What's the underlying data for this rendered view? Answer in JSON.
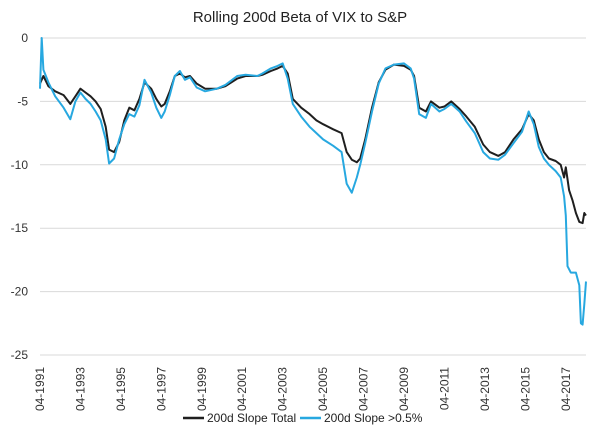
{
  "chart_data": {
    "type": "line",
    "title": "Rolling 200d Beta of VIX to S&P",
    "xlabel": "",
    "ylabel": "",
    "ylim": [
      -25,
      0
    ],
    "y_ticks": [
      0,
      -5,
      -10,
      -15,
      -20,
      -25
    ],
    "x_range": [
      "1991-04",
      "2018-04"
    ],
    "x_ticks": [
      "04-1991",
      "04-1993",
      "04-1995",
      "04-1997",
      "04-1999",
      "04-2001",
      "04-2003",
      "04-2005",
      "04-2007",
      "04-2009",
      "04-2011",
      "04-2013",
      "04-2015",
      "04-2017"
    ],
    "grid": "horizontal",
    "legend_position": "bottom",
    "series": [
      {
        "name": "200d Slope Total",
        "color": "#1f1f1f",
        "points": [
          [
            "1991-04",
            -3.6
          ],
          [
            "1991-06",
            -3.0
          ],
          [
            "1991-09",
            -3.8
          ],
          [
            "1992-01",
            -4.2
          ],
          [
            "1992-06",
            -4.5
          ],
          [
            "1992-10",
            -5.2
          ],
          [
            "1993-01",
            -4.6
          ],
          [
            "1993-04",
            -4.0
          ],
          [
            "1993-07",
            -4.3
          ],
          [
            "1993-10",
            -4.6
          ],
          [
            "1994-01",
            -5.0
          ],
          [
            "1994-04",
            -5.6
          ],
          [
            "1994-07",
            -7.0
          ],
          [
            "1994-09",
            -8.8
          ],
          [
            "1994-12",
            -9.0
          ],
          [
            "1995-03",
            -8.2
          ],
          [
            "1995-06",
            -6.5
          ],
          [
            "1995-09",
            -5.5
          ],
          [
            "1995-12",
            -5.7
          ],
          [
            "1996-03",
            -4.8
          ],
          [
            "1996-06",
            -3.5
          ],
          [
            "1996-10",
            -4.0
          ],
          [
            "1997-01",
            -4.8
          ],
          [
            "1997-04",
            -5.4
          ],
          [
            "1997-06",
            -5.2
          ],
          [
            "1997-09",
            -4.2
          ],
          [
            "1997-12",
            -3.0
          ],
          [
            "1998-03",
            -2.8
          ],
          [
            "1998-06",
            -3.1
          ],
          [
            "1998-09",
            -3.0
          ],
          [
            "1999-01",
            -3.6
          ],
          [
            "1999-06",
            -4.0
          ],
          [
            "2000-01",
            -4.0
          ],
          [
            "2000-06",
            -3.8
          ],
          [
            "2001-01",
            -3.2
          ],
          [
            "2001-06",
            -3.0
          ],
          [
            "2002-01",
            -3.0
          ],
          [
            "2002-04",
            -2.9
          ],
          [
            "2002-09",
            -2.6
          ],
          [
            "2003-01",
            -2.4
          ],
          [
            "2003-04",
            -2.2
          ],
          [
            "2003-07",
            -2.8
          ],
          [
            "2003-10",
            -4.8
          ],
          [
            "2004-03",
            -5.5
          ],
          [
            "2004-08",
            -6.0
          ],
          [
            "2004-12",
            -6.5
          ],
          [
            "2005-04",
            -6.8
          ],
          [
            "2005-10",
            -7.2
          ],
          [
            "2006-03",
            -7.5
          ],
          [
            "2006-06",
            -9.0
          ],
          [
            "2006-09",
            -9.6
          ],
          [
            "2006-12",
            -9.8
          ],
          [
            "2007-02",
            -9.5
          ],
          [
            "2007-05",
            -8.0
          ],
          [
            "2007-09",
            -5.5
          ],
          [
            "2008-01",
            -3.5
          ],
          [
            "2008-05",
            -2.5
          ],
          [
            "2008-10",
            -2.1
          ],
          [
            "2009-04",
            -2.2
          ],
          [
            "2009-08",
            -2.5
          ],
          [
            "2009-10",
            -3.0
          ],
          [
            "2010-01",
            -5.5
          ],
          [
            "2010-05",
            -5.8
          ],
          [
            "2010-08",
            -5.0
          ],
          [
            "2011-01",
            -5.5
          ],
          [
            "2011-04",
            -5.4
          ],
          [
            "2011-08",
            -5.0
          ],
          [
            "2012-01",
            -5.6
          ],
          [
            "2012-05",
            -6.2
          ],
          [
            "2012-10",
            -7.0
          ],
          [
            "2013-03",
            -8.4
          ],
          [
            "2013-07",
            -9.0
          ],
          [
            "2013-12",
            -9.3
          ],
          [
            "2014-04",
            -9.0
          ],
          [
            "2014-09",
            -8.0
          ],
          [
            "2015-02",
            -7.2
          ],
          [
            "2015-06",
            -6.0
          ],
          [
            "2015-09",
            -6.5
          ],
          [
            "2015-12",
            -8.0
          ],
          [
            "2016-03",
            -9.0
          ],
          [
            "2016-06",
            -9.5
          ],
          [
            "2016-10",
            -9.7
          ],
          [
            "2017-01",
            -10.0
          ],
          [
            "2017-03",
            -11.0
          ],
          [
            "2017-04",
            -10.2
          ],
          [
            "2017-06",
            -12.0
          ],
          [
            "2017-08",
            -12.8
          ],
          [
            "2017-10",
            -13.8
          ],
          [
            "2017-12",
            -14.5
          ],
          [
            "2018-02",
            -14.6
          ],
          [
            "2018-03",
            -13.8
          ],
          [
            "2018-04",
            -14.0
          ]
        ]
      },
      {
        "name": "200d Slope >0.5%",
        "color": "#27a8e0",
        "points": [
          [
            "1991-04",
            -4.0
          ],
          [
            "1991-05",
            0.0
          ],
          [
            "1991-06",
            -2.5
          ],
          [
            "1991-09",
            -3.5
          ],
          [
            "1992-01",
            -4.6
          ],
          [
            "1992-06",
            -5.5
          ],
          [
            "1992-10",
            -6.4
          ],
          [
            "1993-01",
            -5.0
          ],
          [
            "1993-04",
            -4.3
          ],
          [
            "1993-07",
            -4.8
          ],
          [
            "1993-10",
            -5.2
          ],
          [
            "1994-01",
            -5.8
          ],
          [
            "1994-04",
            -6.5
          ],
          [
            "1994-07",
            -8.0
          ],
          [
            "1994-09",
            -9.9
          ],
          [
            "1994-12",
            -9.5
          ],
          [
            "1995-03",
            -8.0
          ],
          [
            "1995-06",
            -6.8
          ],
          [
            "1995-09",
            -6.0
          ],
          [
            "1995-12",
            -6.2
          ],
          [
            "1996-03",
            -5.3
          ],
          [
            "1996-06",
            -3.3
          ],
          [
            "1996-10",
            -4.3
          ],
          [
            "1997-01",
            -5.5
          ],
          [
            "1997-04",
            -6.3
          ],
          [
            "1997-06",
            -5.8
          ],
          [
            "1997-09",
            -4.5
          ],
          [
            "1997-12",
            -3.0
          ],
          [
            "1998-03",
            -2.6
          ],
          [
            "1998-06",
            -3.3
          ],
          [
            "1998-09",
            -3.1
          ],
          [
            "1999-01",
            -3.9
          ],
          [
            "1999-06",
            -4.2
          ],
          [
            "2000-01",
            -4.0
          ],
          [
            "2000-06",
            -3.7
          ],
          [
            "2001-01",
            -3.0
          ],
          [
            "2001-06",
            -2.9
          ],
          [
            "2002-01",
            -3.0
          ],
          [
            "2002-04",
            -2.8
          ],
          [
            "2002-09",
            -2.4
          ],
          [
            "2003-01",
            -2.2
          ],
          [
            "2003-04",
            -2.0
          ],
          [
            "2003-07",
            -3.2
          ],
          [
            "2003-10",
            -5.2
          ],
          [
            "2004-03",
            -6.2
          ],
          [
            "2004-08",
            -7.0
          ],
          [
            "2004-12",
            -7.5
          ],
          [
            "2005-04",
            -8.0
          ],
          [
            "2005-10",
            -8.5
          ],
          [
            "2006-03",
            -9.0
          ],
          [
            "2006-06",
            -11.5
          ],
          [
            "2006-09",
            -12.2
          ],
          [
            "2006-12",
            -11.0
          ],
          [
            "2007-02",
            -10.0
          ],
          [
            "2007-05",
            -8.3
          ],
          [
            "2007-09",
            -5.8
          ],
          [
            "2008-01",
            -3.6
          ],
          [
            "2008-05",
            -2.4
          ],
          [
            "2008-10",
            -2.1
          ],
          [
            "2009-04",
            -2.0
          ],
          [
            "2009-08",
            -2.4
          ],
          [
            "2009-10",
            -3.2
          ],
          [
            "2010-01",
            -6.0
          ],
          [
            "2010-05",
            -6.3
          ],
          [
            "2010-08",
            -5.2
          ],
          [
            "2011-01",
            -5.8
          ],
          [
            "2011-04",
            -5.6
          ],
          [
            "2011-08",
            -5.2
          ],
          [
            "2012-01",
            -5.8
          ],
          [
            "2012-05",
            -6.6
          ],
          [
            "2012-10",
            -7.5
          ],
          [
            "2013-03",
            -9.0
          ],
          [
            "2013-07",
            -9.5
          ],
          [
            "2013-12",
            -9.6
          ],
          [
            "2014-04",
            -9.2
          ],
          [
            "2014-09",
            -8.3
          ],
          [
            "2015-02",
            -7.4
          ],
          [
            "2015-06",
            -5.8
          ],
          [
            "2015-09",
            -6.8
          ],
          [
            "2015-12",
            -8.6
          ],
          [
            "2016-03",
            -9.5
          ],
          [
            "2016-06",
            -10.0
          ],
          [
            "2016-10",
            -10.5
          ],
          [
            "2017-01",
            -11.0
          ],
          [
            "2017-03",
            -12.5
          ],
          [
            "2017-04",
            -14.0
          ],
          [
            "2017-05",
            -18.0
          ],
          [
            "2017-07",
            -18.5
          ],
          [
            "2017-10",
            -18.5
          ],
          [
            "2017-12",
            -19.5
          ],
          [
            "2018-01",
            -22.5
          ],
          [
            "2018-02",
            -22.6
          ],
          [
            "2018-03",
            -21.0
          ],
          [
            "2018-04",
            -19.2
          ]
        ]
      }
    ]
  }
}
